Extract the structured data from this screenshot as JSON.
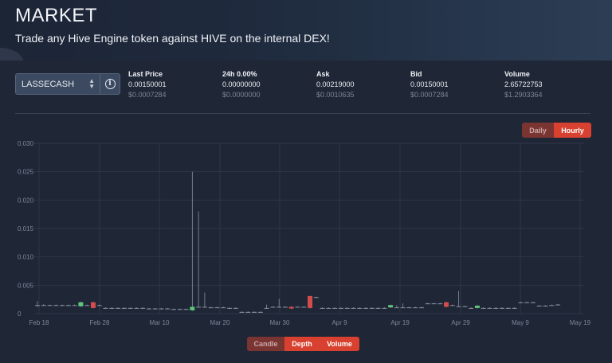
{
  "hero": {
    "title": "MARKET",
    "subtitle": "Trade any Hive Engine token against HIVE on the internal DEX!"
  },
  "token_select": {
    "value": "LASSECASH"
  },
  "stats": [
    {
      "label": "Last Price",
      "value": "0.00150001",
      "usd": "$0.0007284"
    },
    {
      "label": "24h 0.00%",
      "value": "0.00000000",
      "usd": "$0.0000000"
    },
    {
      "label": "Ask",
      "value": "0.00219000",
      "usd": "$0.0010635"
    },
    {
      "label": "Bid",
      "value": "0.00150001",
      "usd": "$0.0007284"
    },
    {
      "label": "Volume",
      "value": "2.65722753",
      "usd": "$1.2903364"
    }
  ],
  "interval_toggle": {
    "daily": "Daily",
    "hourly": "Hourly",
    "active": "Hourly"
  },
  "chart_toggle": {
    "candle": "Candle",
    "depth": "Depth",
    "volume": "Volume",
    "active": [
      "Depth",
      "Volume"
    ]
  },
  "colors": {
    "up": "#5cc97a",
    "down": "#d64b4b",
    "accent": "#d8412f",
    "wick": "#8a93a3"
  },
  "chart_data": {
    "type": "candlestick",
    "ylim": [
      0,
      0.03
    ],
    "yticks": [
      "0.030",
      "0.025",
      "0.020",
      "0.015",
      "0.010",
      "0.005",
      "0"
    ],
    "xticks": [
      "Feb 18",
      "Feb 28",
      "Mar 10",
      "Mar 20",
      "Mar 30",
      "Apr 9",
      "Apr 19",
      "Apr 29",
      "May 9",
      "May 19"
    ],
    "grid": true,
    "candles": [
      {
        "d": 0,
        "o": 0.0015,
        "c": 0.0015,
        "h": 0.0022,
        "l": 0.0012
      },
      {
        "d": 1,
        "o": 0.0015,
        "c": 0.0015,
        "h": 0.0017,
        "l": 0.0014
      },
      {
        "d": 2,
        "o": 0.0015,
        "c": 0.0015,
        "h": 0.0016,
        "l": 0.0014
      },
      {
        "d": 3,
        "o": 0.0015,
        "c": 0.0015,
        "h": 0.0016,
        "l": 0.0014
      },
      {
        "d": 4,
        "o": 0.0015,
        "c": 0.0015,
        "h": 0.0016,
        "l": 0.0014
      },
      {
        "d": 5,
        "o": 0.0015,
        "c": 0.0015,
        "h": 0.0016,
        "l": 0.0014
      },
      {
        "d": 6,
        "o": 0.0015,
        "c": 0.0015,
        "h": 0.0016,
        "l": 0.0014
      },
      {
        "d": 7,
        "o": 0.0013,
        "c": 0.002,
        "h": 0.0021,
        "l": 0.0012
      },
      {
        "d": 8,
        "o": 0.0015,
        "c": 0.0015,
        "h": 0.0016,
        "l": 0.0014
      },
      {
        "d": 9,
        "o": 0.002,
        "c": 0.001,
        "h": 0.0021,
        "l": 0.0009
      },
      {
        "d": 10,
        "o": 0.0015,
        "c": 0.0015,
        "h": 0.0016,
        "l": 0.0014
      },
      {
        "d": 11,
        "o": 0.001,
        "c": 0.001,
        "h": 0.0011,
        "l": 0.0009
      },
      {
        "d": 12,
        "o": 0.001,
        "c": 0.001,
        "h": 0.0011,
        "l": 0.0009
      },
      {
        "d": 13,
        "o": 0.001,
        "c": 0.001,
        "h": 0.0011,
        "l": 0.0009
      },
      {
        "d": 14,
        "o": 0.001,
        "c": 0.001,
        "h": 0.0011,
        "l": 0.0009
      },
      {
        "d": 15,
        "o": 0.001,
        "c": 0.001,
        "h": 0.0011,
        "l": 0.0009
      },
      {
        "d": 16,
        "o": 0.001,
        "c": 0.001,
        "h": 0.0011,
        "l": 0.0009
      },
      {
        "d": 17,
        "o": 0.001,
        "c": 0.001,
        "h": 0.0011,
        "l": 0.0009
      },
      {
        "d": 18,
        "o": 0.0009,
        "c": 0.0009,
        "h": 0.001,
        "l": 0.0008
      },
      {
        "d": 19,
        "o": 0.0009,
        "c": 0.0009,
        "h": 0.001,
        "l": 0.0008
      },
      {
        "d": 20,
        "o": 0.0009,
        "c": 0.0009,
        "h": 0.001,
        "l": 0.0008
      },
      {
        "d": 21,
        "o": 0.0009,
        "c": 0.0009,
        "h": 0.001,
        "l": 0.0008
      },
      {
        "d": 22,
        "o": 0.0008,
        "c": 0.0008,
        "h": 0.0009,
        "l": 0.0007
      },
      {
        "d": 23,
        "o": 0.0008,
        "c": 0.0008,
        "h": 0.0009,
        "l": 0.0007
      },
      {
        "d": 24,
        "o": 0.0008,
        "c": 0.0008,
        "h": 0.0009,
        "l": 0.0007
      },
      {
        "d": 25,
        "o": 0.0006,
        "c": 0.0012,
        "h": 0.025,
        "l": 0.0005
      },
      {
        "d": 26,
        "o": 0.0012,
        "c": 0.0012,
        "h": 0.018,
        "l": 0.0011
      },
      {
        "d": 27,
        "o": 0.0012,
        "c": 0.0012,
        "h": 0.0037,
        "l": 0.0011
      },
      {
        "d": 28,
        "o": 0.0011,
        "c": 0.0011,
        "h": 0.0012,
        "l": 0.001
      },
      {
        "d": 29,
        "o": 0.0011,
        "c": 0.0011,
        "h": 0.0012,
        "l": 0.001
      },
      {
        "d": 30,
        "o": 0.0011,
        "c": 0.0011,
        "h": 0.0012,
        "l": 0.001
      },
      {
        "d": 31,
        "o": 0.001,
        "c": 0.001,
        "h": 0.0011,
        "l": 0.0009
      },
      {
        "d": 32,
        "o": 0.001,
        "c": 0.001,
        "h": 0.0011,
        "l": 0.0009
      },
      {
        "d": 33,
        "o": 0.0003,
        "c": 0.0003,
        "h": 0.0004,
        "l": 0.0002
      },
      {
        "d": 34,
        "o": 0.0003,
        "c": 0.0003,
        "h": 0.0004,
        "l": 0.0002
      },
      {
        "d": 35,
        "o": 0.0003,
        "c": 0.0003,
        "h": 0.0004,
        "l": 0.0002
      },
      {
        "d": 36,
        "o": 0.0003,
        "c": 0.0003,
        "h": 0.0004,
        "l": 0.0002
      },
      {
        "d": 37,
        "o": 0.001,
        "c": 0.001,
        "h": 0.0016,
        "l": 0.0009
      },
      {
        "d": 38,
        "o": 0.0012,
        "c": 0.0012,
        "h": 0.0013,
        "l": 0.0011
      },
      {
        "d": 39,
        "o": 0.0012,
        "c": 0.0012,
        "h": 0.0026,
        "l": 0.0011
      },
      {
        "d": 40,
        "o": 0.0012,
        "c": 0.0012,
        "h": 0.0013,
        "l": 0.0011
      },
      {
        "d": 41,
        "o": 0.0012,
        "c": 0.0009,
        "h": 0.0013,
        "l": 0.0008
      },
      {
        "d": 42,
        "o": 0.0012,
        "c": 0.0012,
        "h": 0.0013,
        "l": 0.0011
      },
      {
        "d": 43,
        "o": 0.0012,
        "c": 0.0012,
        "h": 0.0013,
        "l": 0.0011
      },
      {
        "d": 44,
        "o": 0.0031,
        "c": 0.001,
        "h": 0.0031,
        "l": 0.0009
      },
      {
        "d": 45,
        "o": 0.0029,
        "c": 0.0029,
        "h": 0.003,
        "l": 0.0028
      },
      {
        "d": 46,
        "o": 0.001,
        "c": 0.001,
        "h": 0.0011,
        "l": 0.0009
      },
      {
        "d": 47,
        "o": 0.001,
        "c": 0.001,
        "h": 0.0011,
        "l": 0.0009
      },
      {
        "d": 48,
        "o": 0.001,
        "c": 0.001,
        "h": 0.0011,
        "l": 0.0009
      },
      {
        "d": 49,
        "o": 0.001,
        "c": 0.001,
        "h": 0.0011,
        "l": 0.0009
      },
      {
        "d": 50,
        "o": 0.001,
        "c": 0.001,
        "h": 0.0011,
        "l": 0.0009
      },
      {
        "d": 51,
        "o": 0.001,
        "c": 0.001,
        "h": 0.0011,
        "l": 0.0009
      },
      {
        "d": 52,
        "o": 0.001,
        "c": 0.001,
        "h": 0.0011,
        "l": 0.0009
      },
      {
        "d": 53,
        "o": 0.001,
        "c": 0.001,
        "h": 0.0011,
        "l": 0.0009
      },
      {
        "d": 54,
        "o": 0.001,
        "c": 0.001,
        "h": 0.0011,
        "l": 0.0009
      },
      {
        "d": 55,
        "o": 0.001,
        "c": 0.001,
        "h": 0.0011,
        "l": 0.0009
      },
      {
        "d": 56,
        "o": 0.001,
        "c": 0.001,
        "h": 0.0011,
        "l": 0.0009
      },
      {
        "d": 57,
        "o": 0.0011,
        "c": 0.0015,
        "h": 0.0016,
        "l": 0.001
      },
      {
        "d": 58,
        "o": 0.0011,
        "c": 0.0011,
        "h": 0.0015,
        "l": 0.001
      },
      {
        "d": 59,
        "o": 0.0011,
        "c": 0.0011,
        "h": 0.0018,
        "l": 0.001
      },
      {
        "d": 60,
        "o": 0.0011,
        "c": 0.0011,
        "h": 0.0012,
        "l": 0.001
      },
      {
        "d": 61,
        "o": 0.0011,
        "c": 0.0011,
        "h": 0.0012,
        "l": 0.001
      },
      {
        "d": 62,
        "o": 0.0011,
        "c": 0.0011,
        "h": 0.0012,
        "l": 0.001
      },
      {
        "d": 63,
        "o": 0.0018,
        "c": 0.0018,
        "h": 0.0019,
        "l": 0.0017
      },
      {
        "d": 64,
        "o": 0.0018,
        "c": 0.0018,
        "h": 0.0019,
        "l": 0.0017
      },
      {
        "d": 65,
        "o": 0.0018,
        "c": 0.0018,
        "h": 0.0019,
        "l": 0.0017
      },
      {
        "d": 66,
        "o": 0.002,
        "c": 0.0012,
        "h": 0.0021,
        "l": 0.0011
      },
      {
        "d": 67,
        "o": 0.0015,
        "c": 0.0015,
        "h": 0.0016,
        "l": 0.0014
      },
      {
        "d": 68,
        "o": 0.0013,
        "c": 0.0013,
        "h": 0.004,
        "l": 0.0012
      },
      {
        "d": 69,
        "o": 0.0013,
        "c": 0.0013,
        "h": 0.0014,
        "l": 0.0012
      },
      {
        "d": 70,
        "o": 0.001,
        "c": 0.001,
        "h": 0.0011,
        "l": 0.0009
      },
      {
        "d": 71,
        "o": 0.001,
        "c": 0.0014,
        "h": 0.0015,
        "l": 0.0009
      },
      {
        "d": 72,
        "o": 0.001,
        "c": 0.001,
        "h": 0.0011,
        "l": 0.0009
      },
      {
        "d": 73,
        "o": 0.001,
        "c": 0.001,
        "h": 0.0011,
        "l": 0.0009
      },
      {
        "d": 74,
        "o": 0.001,
        "c": 0.001,
        "h": 0.0011,
        "l": 0.0009
      },
      {
        "d": 75,
        "o": 0.001,
        "c": 0.001,
        "h": 0.0011,
        "l": 0.0009
      },
      {
        "d": 76,
        "o": 0.001,
        "c": 0.001,
        "h": 0.0011,
        "l": 0.0009
      },
      {
        "d": 77,
        "o": 0.001,
        "c": 0.001,
        "h": 0.0011,
        "l": 0.0009
      },
      {
        "d": 78,
        "o": 0.002,
        "c": 0.002,
        "h": 0.0021,
        "l": 0.0019
      },
      {
        "d": 79,
        "o": 0.002,
        "c": 0.002,
        "h": 0.0021,
        "l": 0.0019
      },
      {
        "d": 80,
        "o": 0.002,
        "c": 0.002,
        "h": 0.0021,
        "l": 0.0019
      },
      {
        "d": 81,
        "o": 0.0014,
        "c": 0.0014,
        "h": 0.0015,
        "l": 0.0013
      },
      {
        "d": 82,
        "o": 0.0014,
        "c": 0.0014,
        "h": 0.0015,
        "l": 0.0013
      },
      {
        "d": 83,
        "o": 0.0015,
        "c": 0.0015,
        "h": 0.0016,
        "l": 0.0014
      },
      {
        "d": 84,
        "o": 0.0016,
        "c": 0.0016,
        "h": 0.0017,
        "l": 0.0015
      }
    ]
  }
}
